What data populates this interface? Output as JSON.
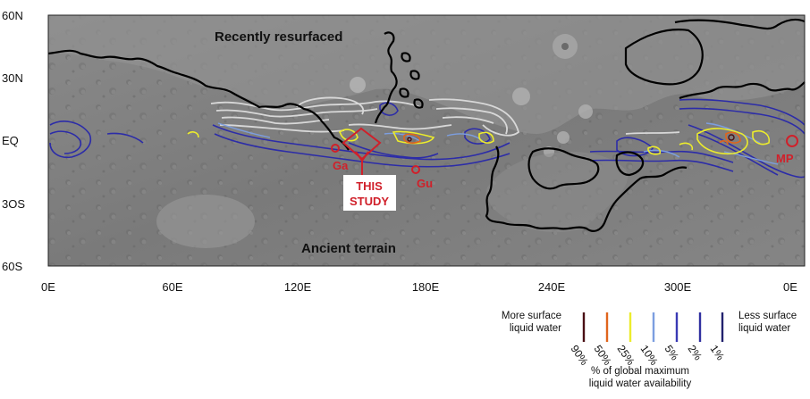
{
  "latitude_labels": [
    "60N",
    "30N",
    "EQ",
    "3OS",
    "60S"
  ],
  "longitude_labels": [
    "0E",
    "60E",
    "120E",
    "180E",
    "240E",
    "300E",
    "0E"
  ],
  "region_labels": {
    "recent": "Recently resurfaced",
    "ancient": "Ancient terrain"
  },
  "site_labels": {
    "ga": "Ga",
    "gu": "Gu",
    "mp": "MP",
    "this_study_line1": "THIS",
    "this_study_line2": "STUDY"
  },
  "legend": {
    "more_line1": "More surface",
    "more_line2": "liquid water",
    "less_line1": "Less surface",
    "less_line2": "liquid water",
    "note_line1": "% of global maximum",
    "note_line2": "liquid water availability",
    "levels": [
      {
        "label": "90%",
        "color": "#4a0f14"
      },
      {
        "label": "50%",
        "color": "#e0651c"
      },
      {
        "label": "25%",
        "color": "#ecec2c"
      },
      {
        "label": "10%",
        "color": "#7c9ee0"
      },
      {
        "label": "5%",
        "color": "#3a3ab4"
      },
      {
        "label": "2%",
        "color": "#3030a0"
      },
      {
        "label": "1%",
        "color": "#22226e"
      }
    ]
  },
  "colors": {
    "boundary": "#000000",
    "marker": "#d0202a",
    "contour_white": "#d8d8d8"
  }
}
